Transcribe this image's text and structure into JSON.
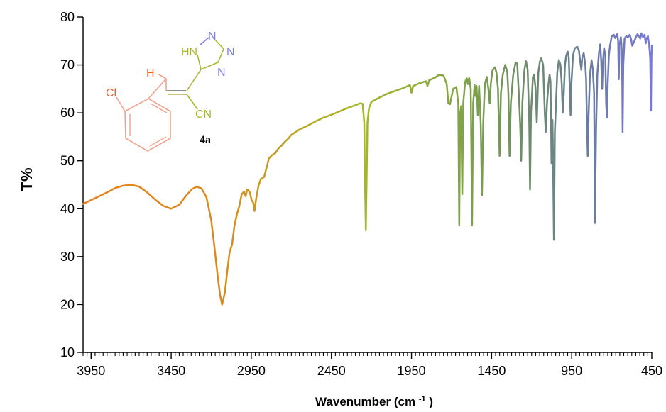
{
  "chart_data": {
    "type": "line",
    "title": "",
    "xlabel": "Wavenumber (cm-1)",
    "xlabel_parts": {
      "base": "Wavenumber (cm",
      "superscript": "-1",
      "tail": ")"
    },
    "ylabel": "T%",
    "xlim": [
      4000,
      450
    ],
    "ylim": [
      10,
      80
    ],
    "x_reversed": true,
    "grid": false,
    "legend": "none",
    "x_ticks": [
      3950,
      3450,
      2950,
      2450,
      1950,
      1450,
      950,
      450
    ],
    "y_ticks": [
      80,
      70,
      60,
      50,
      40,
      30,
      20,
      10
    ],
    "series": [
      {
        "values": [
          [
            4000,
            41.0
          ],
          [
            3950,
            41.8
          ],
          [
            3900,
            42.6
          ],
          [
            3850,
            43.4
          ],
          [
            3800,
            44.3
          ],
          [
            3750,
            44.8
          ],
          [
            3700,
            45.0
          ],
          [
            3650,
            44.6
          ],
          [
            3600,
            43.4
          ],
          [
            3550,
            41.9
          ],
          [
            3500,
            40.6
          ],
          [
            3450,
            40.0
          ],
          [
            3400,
            40.8
          ],
          [
            3360,
            42.6
          ],
          [
            3320,
            44.1
          ],
          [
            3290,
            44.6
          ],
          [
            3260,
            44.2
          ],
          [
            3230,
            42.4
          ],
          [
            3200,
            37.6
          ],
          [
            3180,
            32.0
          ],
          [
            3160,
            26.0
          ],
          [
            3145,
            22.0
          ],
          [
            3132,
            20.0
          ],
          [
            3115,
            22.5
          ],
          [
            3098,
            27.5
          ],
          [
            3085,
            31.0
          ],
          [
            3070,
            32.5
          ],
          [
            3055,
            36.5
          ],
          [
            3040,
            38.8
          ],
          [
            3025,
            40.5
          ],
          [
            3010,
            43.0
          ],
          [
            2995,
            43.6
          ],
          [
            2985,
            42.6
          ],
          [
            2975,
            44.0
          ],
          [
            2960,
            43.5
          ],
          [
            2948,
            41.8
          ],
          [
            2938,
            41.3
          ],
          [
            2930,
            39.5
          ],
          [
            2920,
            42.0
          ],
          [
            2905,
            44.8
          ],
          [
            2890,
            46.2
          ],
          [
            2870,
            46.6
          ],
          [
            2855,
            48.5
          ],
          [
            2840,
            50.5
          ],
          [
            2820,
            51.2
          ],
          [
            2800,
            51.6
          ],
          [
            2780,
            52.6
          ],
          [
            2760,
            53.2
          ],
          [
            2740,
            54.0
          ],
          [
            2720,
            54.6
          ],
          [
            2700,
            55.4
          ],
          [
            2650,
            56.5
          ],
          [
            2600,
            57.3
          ],
          [
            2550,
            58.2
          ],
          [
            2500,
            59.0
          ],
          [
            2450,
            59.6
          ],
          [
            2400,
            60.3
          ],
          [
            2350,
            61.0
          ],
          [
            2300,
            61.6
          ],
          [
            2270,
            62.0
          ],
          [
            2255,
            61.9
          ],
          [
            2245,
            58.0
          ],
          [
            2240,
            45.0
          ],
          [
            2235,
            35.5
          ],
          [
            2230,
            46.0
          ],
          [
            2225,
            58.0
          ],
          [
            2215,
            61.0
          ],
          [
            2200,
            62.3
          ],
          [
            2150,
            63.2
          ],
          [
            2100,
            64.0
          ],
          [
            2050,
            64.6
          ],
          [
            2000,
            65.2
          ],
          [
            1960,
            65.8
          ],
          [
            1950,
            64.2
          ],
          [
            1940,
            65.6
          ],
          [
            1900,
            66.2
          ],
          [
            1860,
            66.6
          ],
          [
            1850,
            65.6
          ],
          [
            1840,
            66.8
          ],
          [
            1800,
            67.4
          ],
          [
            1780,
            67.9
          ],
          [
            1750,
            67.8
          ],
          [
            1730,
            66.0
          ],
          [
            1720,
            62.0
          ],
          [
            1710,
            61.8
          ],
          [
            1690,
            65.0
          ],
          [
            1670,
            65.4
          ],
          [
            1658,
            62.0
          ],
          [
            1652,
            36.5
          ],
          [
            1646,
            60.0
          ],
          [
            1640,
            61.4
          ],
          [
            1633,
            43.0
          ],
          [
            1627,
            62.0
          ],
          [
            1615,
            66.5
          ],
          [
            1605,
            67.2
          ],
          [
            1598,
            66.0
          ],
          [
            1590,
            67.3
          ],
          [
            1580,
            65.0
          ],
          [
            1572,
            36.5
          ],
          [
            1565,
            62.0
          ],
          [
            1556,
            65.8
          ],
          [
            1550,
            63.5
          ],
          [
            1544,
            65.6
          ],
          [
            1536,
            59.5
          ],
          [
            1528,
            65.6
          ],
          [
            1518,
            58.0
          ],
          [
            1510,
            42.8
          ],
          [
            1502,
            58.0
          ],
          [
            1492,
            66.0
          ],
          [
            1480,
            67.5
          ],
          [
            1470,
            65.0
          ],
          [
            1462,
            62.0
          ],
          [
            1455,
            66.0
          ],
          [
            1445,
            68.8
          ],
          [
            1430,
            69.5
          ],
          [
            1420,
            68.5
          ],
          [
            1410,
            65.0
          ],
          [
            1400,
            51.0
          ],
          [
            1392,
            64.0
          ],
          [
            1380,
            68.0
          ],
          [
            1365,
            70.0
          ],
          [
            1352,
            68.5
          ],
          [
            1345,
            64.0
          ],
          [
            1338,
            51.0
          ],
          [
            1330,
            62.0
          ],
          [
            1315,
            68.0
          ],
          [
            1300,
            70.5
          ],
          [
            1290,
            70.3
          ],
          [
            1280,
            64.0
          ],
          [
            1272,
            58.0
          ],
          [
            1265,
            50.0
          ],
          [
            1258,
            62.0
          ],
          [
            1245,
            69.0
          ],
          [
            1235,
            70.8
          ],
          [
            1225,
            69.0
          ],
          [
            1215,
            58.0
          ],
          [
            1210,
            44.0
          ],
          [
            1204,
            60.0
          ],
          [
            1192,
            67.5
          ],
          [
            1185,
            68.0
          ],
          [
            1175,
            65.0
          ],
          [
            1168,
            58.0
          ],
          [
            1158,
            68.5
          ],
          [
            1148,
            70.8
          ],
          [
            1140,
            71.4
          ],
          [
            1128,
            70.0
          ],
          [
            1118,
            60.0
          ],
          [
            1112,
            56.0
          ],
          [
            1104,
            62.0
          ],
          [
            1095,
            66.0
          ],
          [
            1088,
            68.0
          ],
          [
            1082,
            66.5
          ],
          [
            1076,
            49.5
          ],
          [
            1070,
            58.5
          ],
          [
            1066,
            50.0
          ],
          [
            1061,
            33.5
          ],
          [
            1055,
            56.0
          ],
          [
            1048,
            62.0
          ],
          [
            1040,
            68.5
          ],
          [
            1030,
            71.0
          ],
          [
            1020,
            70.0
          ],
          [
            1012,
            66.0
          ],
          [
            1006,
            60.0
          ],
          [
            1000,
            63.5
          ],
          [
            992,
            70.0
          ],
          [
            984,
            72.0
          ],
          [
            975,
            72.8
          ],
          [
            968,
            71.5
          ],
          [
            962,
            65.0
          ],
          [
            957,
            59.5
          ],
          [
            952,
            66.0
          ],
          [
            942,
            72.0
          ],
          [
            930,
            73.5
          ],
          [
            915,
            73.8
          ],
          [
            905,
            73.0
          ],
          [
            898,
            71.0
          ],
          [
            890,
            69.0
          ],
          [
            884,
            71.5
          ],
          [
            875,
            72.5
          ],
          [
            865,
            70.0
          ],
          [
            860,
            67.0
          ],
          [
            856,
            60.0
          ],
          [
            850,
            51.0
          ],
          [
            844,
            60.0
          ],
          [
            836,
            68.0
          ],
          [
            826,
            71.0
          ],
          [
            818,
            69.0
          ],
          [
            810,
            64.0
          ],
          [
            805,
            37.0
          ],
          [
            798,
            56.0
          ],
          [
            790,
            68.0
          ],
          [
            780,
            72.5
          ],
          [
            772,
            74.3
          ],
          [
            766,
            71.0
          ],
          [
            760,
            65.0
          ],
          [
            755,
            70.5
          ],
          [
            748,
            73.5
          ],
          [
            740,
            72.0
          ],
          [
            735,
            62.0
          ],
          [
            730,
            59.0
          ],
          [
            725,
            66.0
          ],
          [
            718,
            72.0
          ],
          [
            710,
            74.2
          ],
          [
            700,
            76.0
          ],
          [
            688,
            76.3
          ],
          [
            678,
            75.6
          ],
          [
            665,
            76.5
          ],
          [
            660,
            75.0
          ],
          [
            656,
            67.0
          ],
          [
            652,
            74.0
          ],
          [
            643,
            75.8
          ],
          [
            636,
            72.5
          ],
          [
            632,
            56.0
          ],
          [
            628,
            70.0
          ],
          [
            620,
            75.5
          ],
          [
            610,
            76.0
          ],
          [
            598,
            75.8
          ],
          [
            588,
            76.3
          ],
          [
            580,
            75.5
          ],
          [
            572,
            74.0
          ],
          [
            562,
            74.8
          ],
          [
            550,
            75.7
          ],
          [
            540,
            76.4
          ],
          [
            530,
            76.0
          ],
          [
            522,
            75.5
          ],
          [
            515,
            76.6
          ],
          [
            505,
            75.8
          ],
          [
            495,
            76.3
          ],
          [
            488,
            74.5
          ],
          [
            482,
            75.5
          ],
          [
            474,
            76.0
          ],
          [
            466,
            74.0
          ],
          [
            460,
            71.5
          ],
          [
            455,
            60.5
          ],
          [
            452,
            72.0
          ],
          [
            450,
            74.0
          ]
        ]
      }
    ],
    "gradient_colors": [
      "#e8811f",
      "#d98a1c",
      "#a7b827",
      "#7fa445",
      "#6e8c6b",
      "#6a7e9a",
      "#7878d8"
    ]
  },
  "molecule": {
    "labels": {
      "n_top": "N",
      "hn": "HN",
      "n_right": "N",
      "n_bottom": "N",
      "h": "H",
      "cl": "Cl",
      "cn": "CN",
      "compound": "4a"
    },
    "colors": {
      "tetrazole_n": "#8080e8",
      "tetrazole_hn": "#a8b82a",
      "vinyl_h": "#ee6022",
      "chloro": "#ee6022",
      "nitrile": "#a8b82a",
      "bond_orange": "#f0a38c",
      "bond_olive": "#b0b448",
      "bond_green": "#a8b82a",
      "bond_blue": "#8080e8",
      "double_bond": "#666666"
    }
  }
}
